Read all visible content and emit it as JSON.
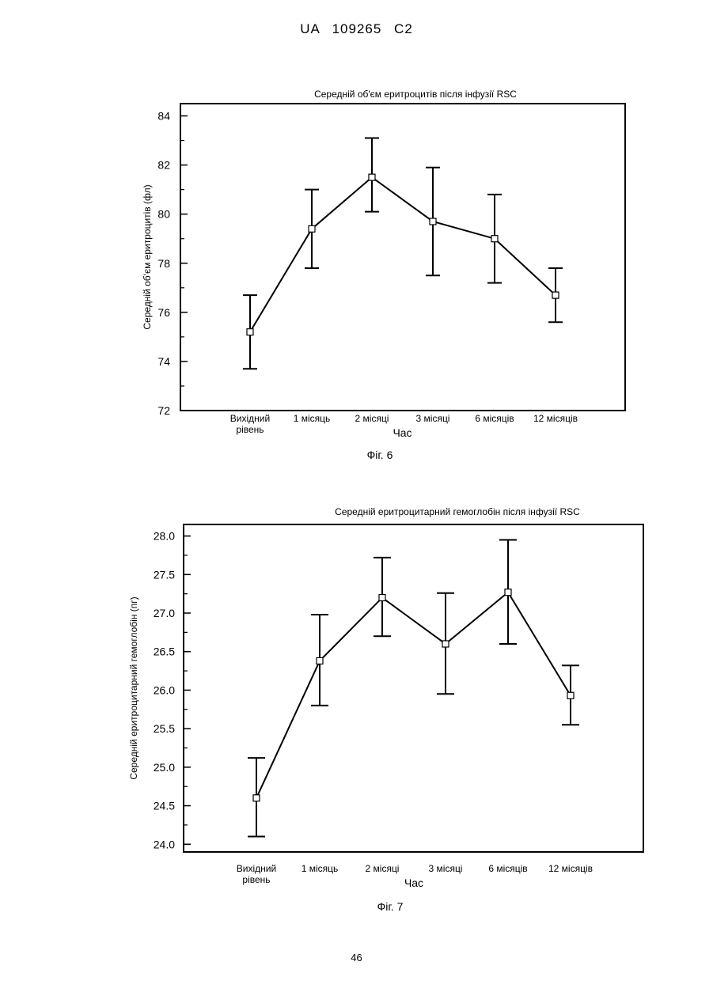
{
  "header": {
    "text": "UA   109265   C2"
  },
  "page_number": "46",
  "chart_data": [
    {
      "type": "line",
      "title": "Середній об'єм еритроцитів після інфузії RSC",
      "xlabel": "Час",
      "ylabel": "Середній об'єм еритроцитів (фл)",
      "caption": "Фіг. 6",
      "categories": [
        [
          "Вихідний",
          "рівень"
        ],
        [
          "1 місяць"
        ],
        [
          "2 місяці"
        ],
        [
          "3 місяці"
        ],
        [
          "6 місяців"
        ],
        [
          "12 місяців"
        ]
      ],
      "series": [
        {
          "values": [
            75.2,
            79.4,
            81.5,
            79.7,
            79.0,
            76.7
          ],
          "error_low": [
            73.7,
            77.8,
            80.1,
            77.5,
            77.2,
            75.6
          ],
          "error_high": [
            76.7,
            81.0,
            83.1,
            81.9,
            80.8,
            77.8
          ]
        }
      ],
      "ylim": [
        72,
        84.5
      ],
      "yticks": [
        "72",
        "74",
        "76",
        "78",
        "80",
        "82",
        "84"
      ],
      "ytick_values": [
        72,
        74,
        76,
        78,
        80,
        82,
        84
      ],
      "grid": false,
      "marker": "open-square"
    },
    {
      "type": "line",
      "title": "Середній еритроцитарний гемоглобін після інфузії RSC",
      "xlabel": "Час",
      "ylabel": "Середній еритроцитарний гемоглобін (пг)",
      "caption": "Фіг. 7",
      "categories": [
        [
          "Вихідний",
          "рівень"
        ],
        [
          "1 місяць"
        ],
        [
          "2 місяці"
        ],
        [
          "3 місяці"
        ],
        [
          "6 місяців"
        ],
        [
          "12 місяців"
        ]
      ],
      "series": [
        {
          "values": [
            24.6,
            26.38,
            27.2,
            26.6,
            27.27,
            25.93
          ],
          "error_low": [
            24.1,
            25.8,
            26.7,
            25.95,
            26.6,
            25.55
          ],
          "error_high": [
            25.12,
            26.98,
            27.72,
            27.26,
            27.95,
            26.32
          ]
        }
      ],
      "ylim": [
        23.9,
        28.15
      ],
      "yticks": [
        "24.0",
        "24.5",
        "25.0",
        "25.5",
        "26.0",
        "26.5",
        "27.0",
        "27.5",
        "28.0"
      ],
      "ytick_values": [
        24.0,
        24.5,
        25.0,
        25.5,
        26.0,
        26.5,
        27.0,
        27.5,
        28.0
      ],
      "grid": false,
      "marker": "open-square"
    }
  ]
}
